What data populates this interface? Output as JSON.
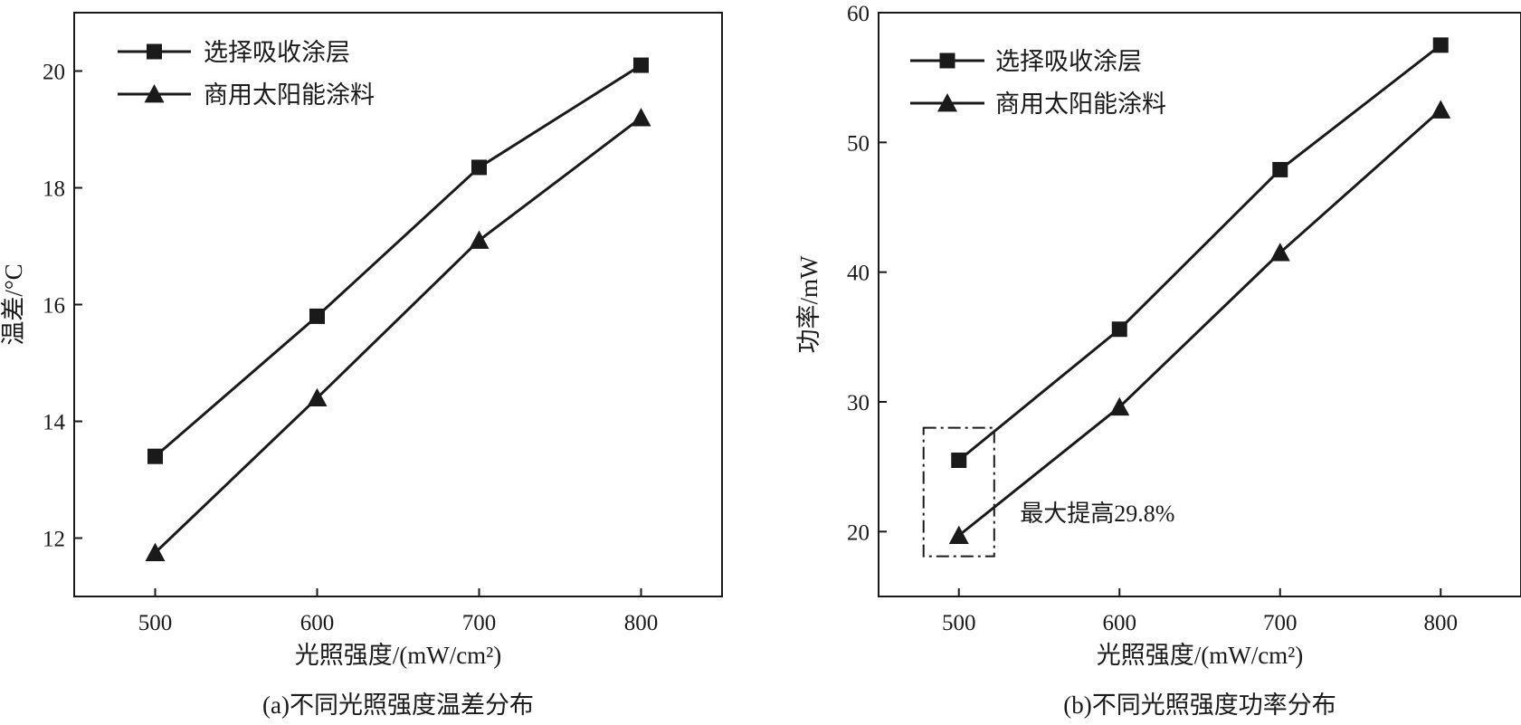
{
  "chart_data": [
    {
      "type": "line",
      "caption": "(a)不同光照强度温差分布",
      "xlabel": "光照强度/(mW/cm²)",
      "ylabel": "温差/°C",
      "x": [
        500,
        600,
        700,
        800
      ],
      "xticks": [
        "500",
        "600",
        "700",
        "800"
      ],
      "yticks": [
        "12",
        "14",
        "16",
        "18",
        "20"
      ],
      "xlim": [
        450,
        850
      ],
      "ylim": [
        11,
        21
      ],
      "grid": false,
      "legend_position": "top-left",
      "series": [
        {
          "name": "选择吸收涂层",
          "marker": "square",
          "values": [
            13.4,
            15.8,
            18.35,
            20.1
          ]
        },
        {
          "name": "商用太阳能涂料",
          "marker": "triangle",
          "values": [
            11.75,
            14.4,
            17.1,
            19.2
          ]
        }
      ]
    },
    {
      "type": "line",
      "caption": "(b)不同光照强度功率分布",
      "xlabel": "光照强度/(mW/cm²)",
      "ylabel": "功率/mW",
      "x": [
        500,
        600,
        700,
        800
      ],
      "xticks": [
        "500",
        "600",
        "700",
        "800"
      ],
      "yticks": [
        "20",
        "30",
        "40",
        "50",
        "60"
      ],
      "xlim": [
        450,
        850
      ],
      "ylim": [
        15,
        60
      ],
      "grid": false,
      "legend_position": "top-left",
      "annotation": "最大提高29.8%",
      "series": [
        {
          "name": "选择吸收涂层",
          "marker": "square",
          "values": [
            25.5,
            35.6,
            47.9,
            57.5
          ]
        },
        {
          "name": "商用太阳能涂料",
          "marker": "triangle",
          "values": [
            19.7,
            29.6,
            41.5,
            52.5
          ]
        }
      ]
    }
  ]
}
